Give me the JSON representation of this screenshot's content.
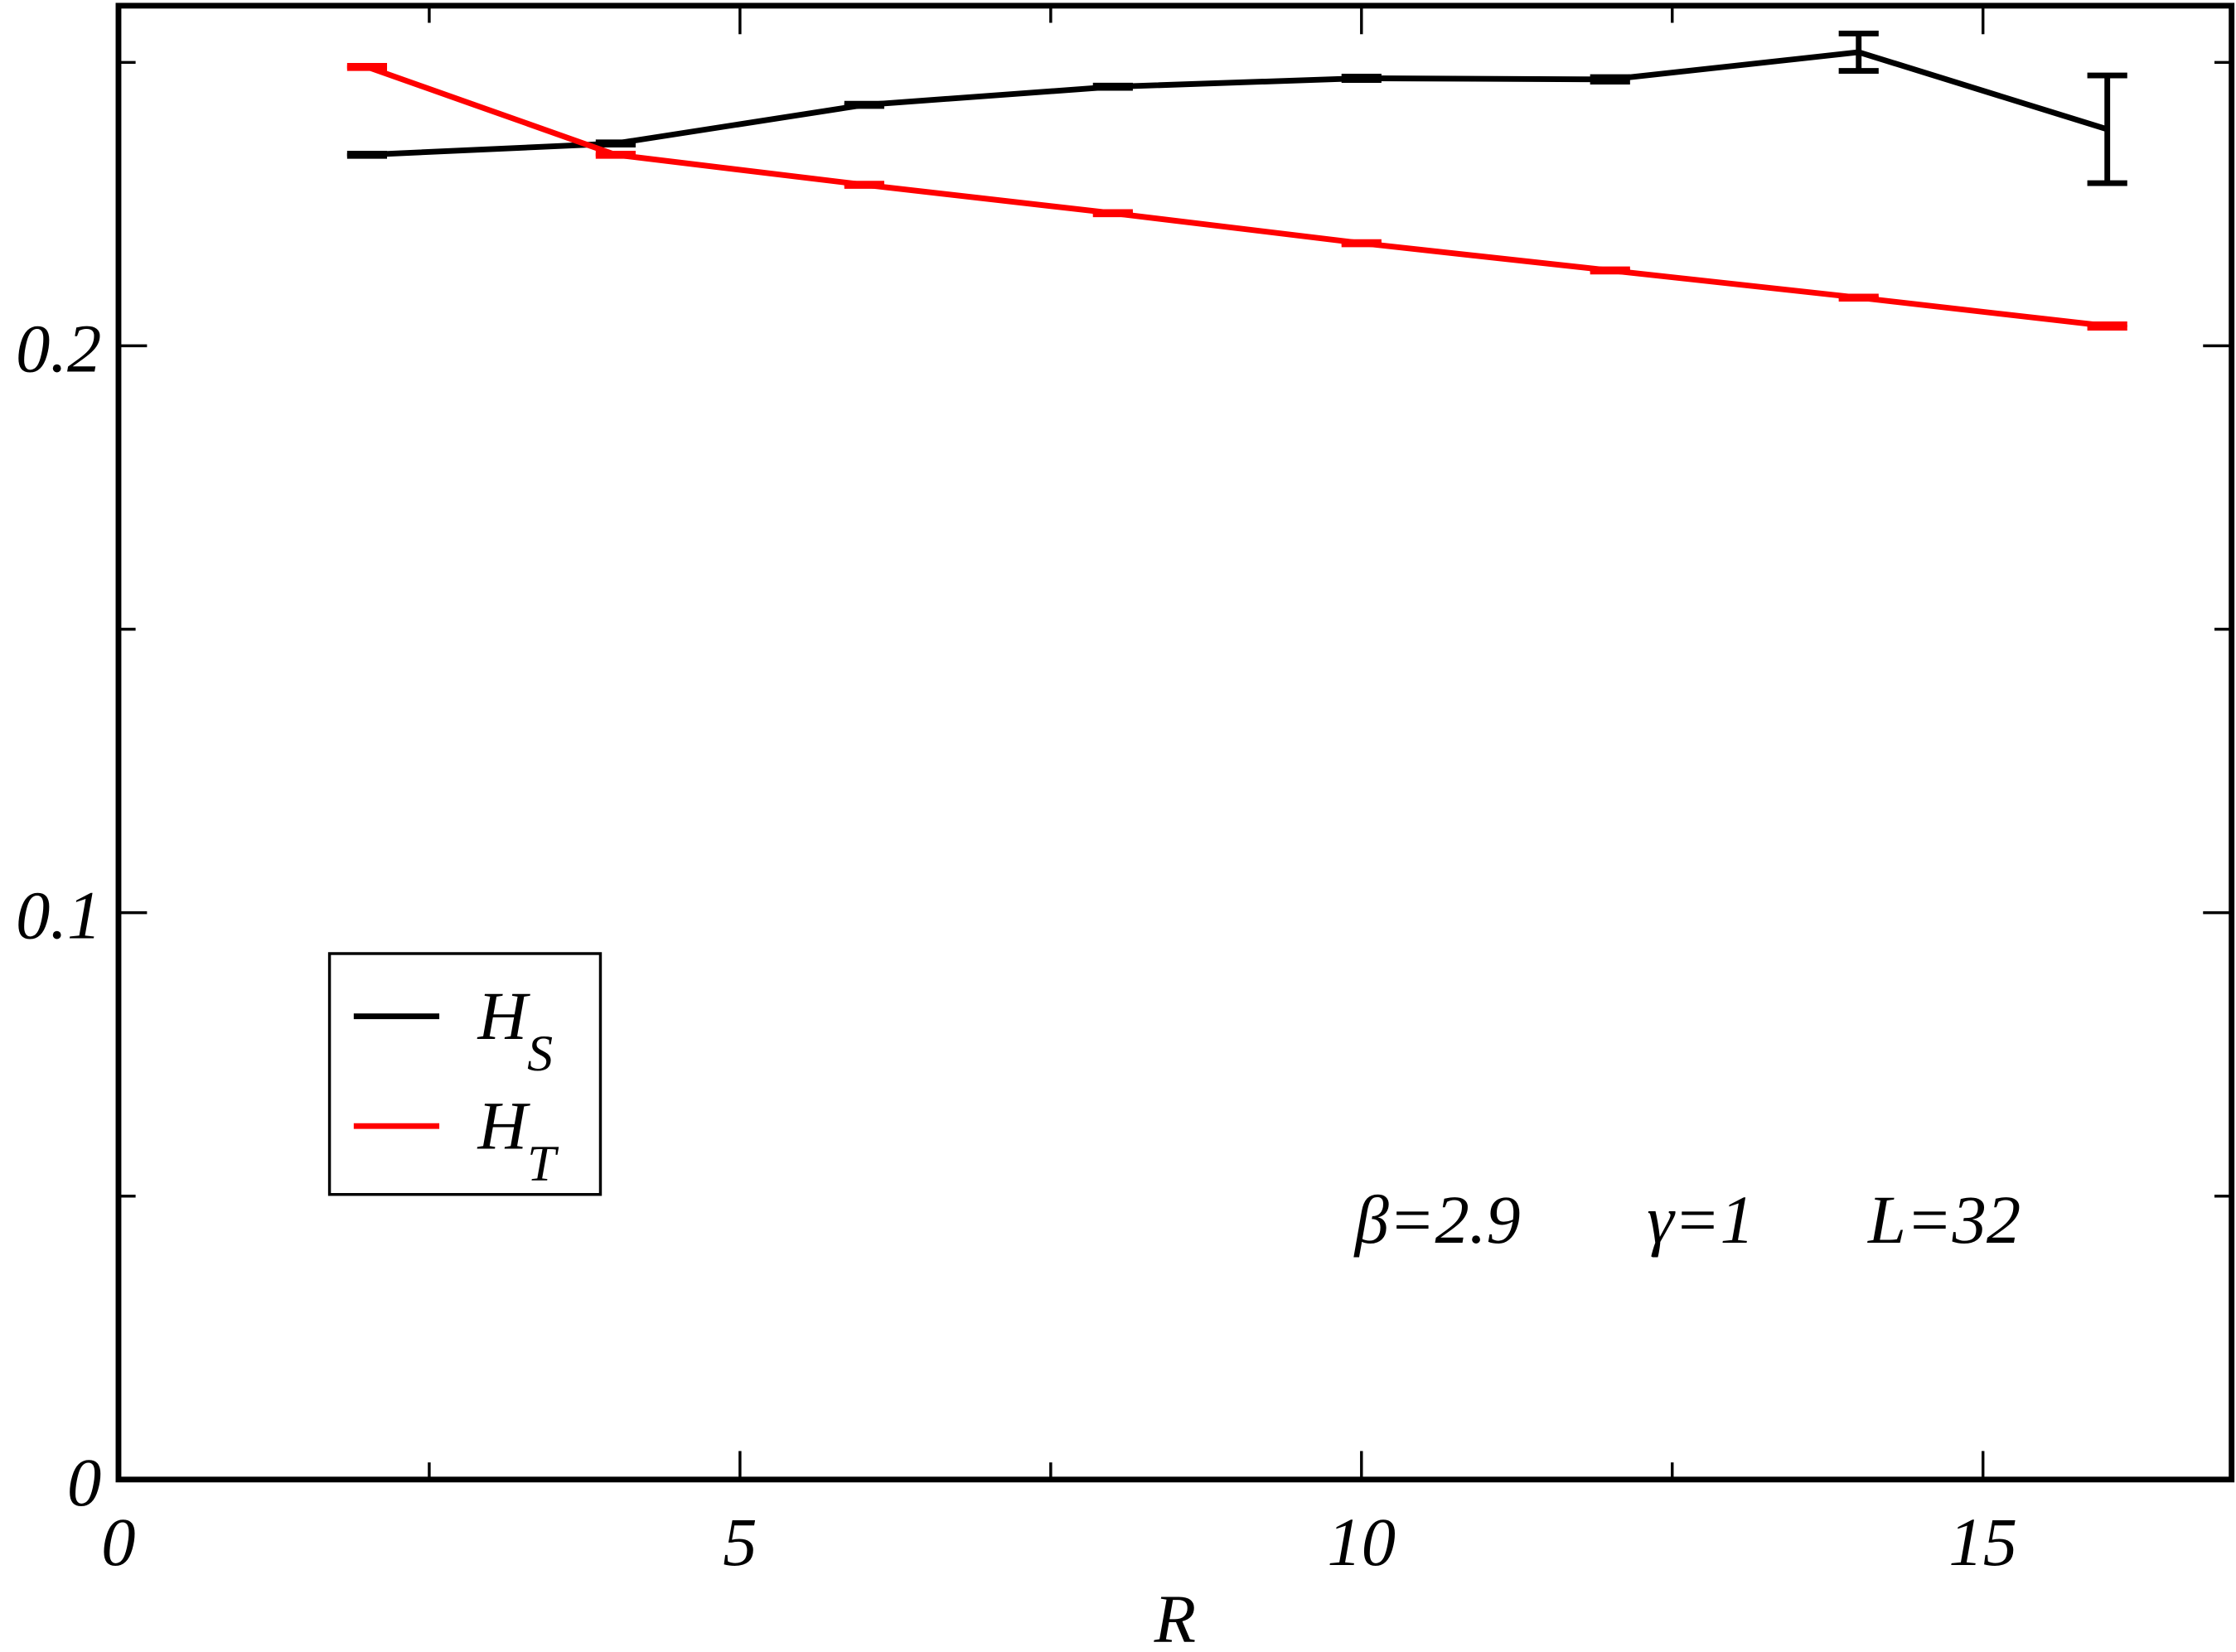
{
  "chart_data": {
    "type": "line",
    "x_label": "R",
    "xlim": [
      0,
      17
    ],
    "xticks": [
      0,
      5,
      10,
      15
    ],
    "xminor": [
      2.5,
      7.5,
      12.5
    ],
    "ylim": [
      0,
      0.26
    ],
    "yticks": [
      0,
      0.1,
      0.2
    ],
    "yminor": [
      0.05,
      0.15,
      0.25
    ],
    "grid": false,
    "legend": "lower-left",
    "annotations": [
      "β=2.9",
      "γ=1",
      "L=32"
    ],
    "series": [
      {
        "name": "H",
        "name_sub": "S",
        "color": "#000000",
        "x": [
          2,
          4,
          6,
          8,
          10,
          12,
          14,
          16
        ],
        "values": [
          0.2337,
          0.2357,
          0.2425,
          0.2457,
          0.2472,
          0.247,
          0.2518,
          0.2382
        ],
        "errors": [
          0.0002,
          0.0002,
          0.0002,
          0.0002,
          0.0003,
          0.0004,
          0.0033,
          0.0095
        ]
      },
      {
        "name": "H",
        "name_sub": "T",
        "color": "#ff0000",
        "x": [
          2,
          4,
          6,
          8,
          10,
          12,
          14,
          16
        ],
        "values": [
          0.2492,
          0.2337,
          0.2284,
          0.2234,
          0.2181,
          0.2133,
          0.2085,
          0.2035
        ],
        "errors": [
          0.0002,
          0.0002,
          0.0002,
          0.0002,
          0.0002,
          0.0002,
          0.0002,
          0.0003
        ]
      }
    ]
  }
}
